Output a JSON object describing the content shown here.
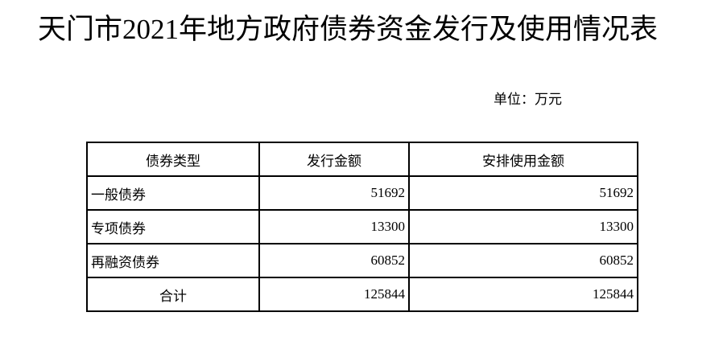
{
  "page": {
    "title": "天门市2021年地方政府债券资金发行及使用情况表",
    "unit_label": "单位：万元"
  },
  "table": {
    "headers": [
      "债券类型",
      "发行金额",
      "安排使用金额"
    ],
    "rows": [
      [
        "一般债券",
        "51692",
        "51692"
      ],
      [
        "专项债券",
        "13300",
        "13300"
      ],
      [
        "再融资债券",
        "60852",
        "60852"
      ],
      [
        "合计",
        "125844",
        "125844"
      ]
    ]
  },
  "colors": {
    "text": "#000000",
    "background": "#ffffff",
    "table_border": "#000000"
  }
}
